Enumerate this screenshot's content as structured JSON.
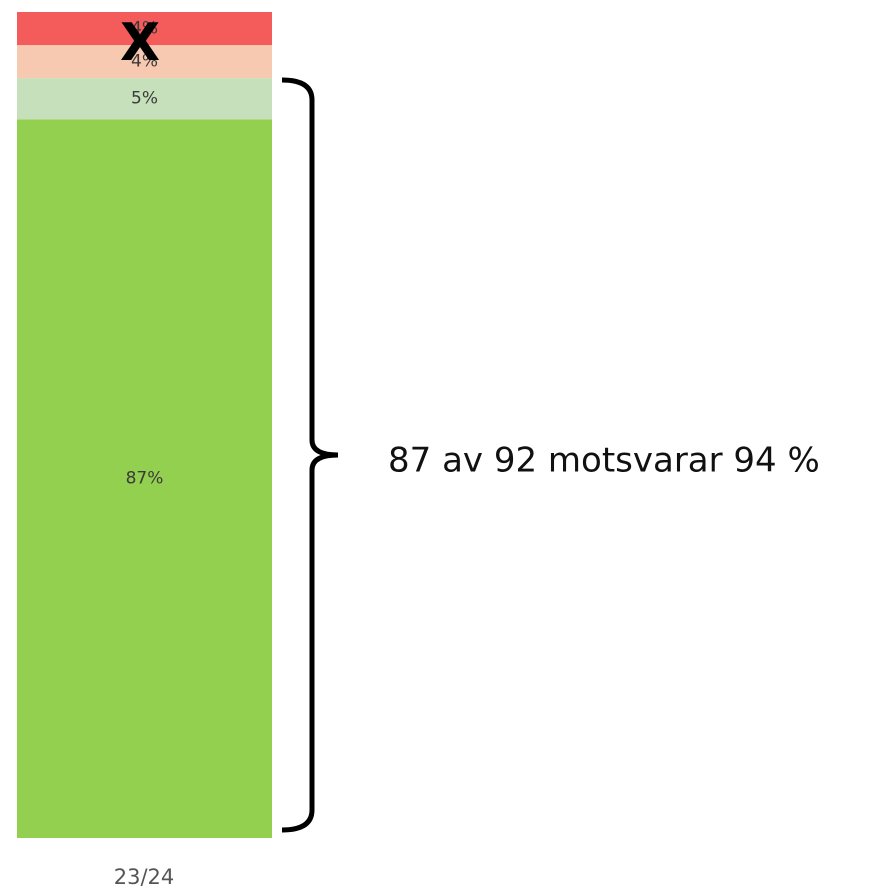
{
  "chart_data": {
    "type": "bar",
    "stacked": true,
    "categories": [
      "23/24"
    ],
    "series": [
      {
        "color": "#94d050",
        "values": [
          87
        ],
        "value_labels": [
          "87%"
        ]
      },
      {
        "color": "#c6e0bb",
        "values": [
          5
        ],
        "value_labels": [
          "5%"
        ]
      },
      {
        "color": "#f8c9b1",
        "values": [
          4
        ],
        "value_labels": [
          "4%"
        ]
      },
      {
        "color": "#f45b5b",
        "values": [
          4
        ],
        "value_labels": [
          "4%"
        ]
      }
    ],
    "ylim": [
      0,
      100
    ],
    "marker": "X",
    "annotation": "87 av 92 motsvarar 94 %"
  }
}
